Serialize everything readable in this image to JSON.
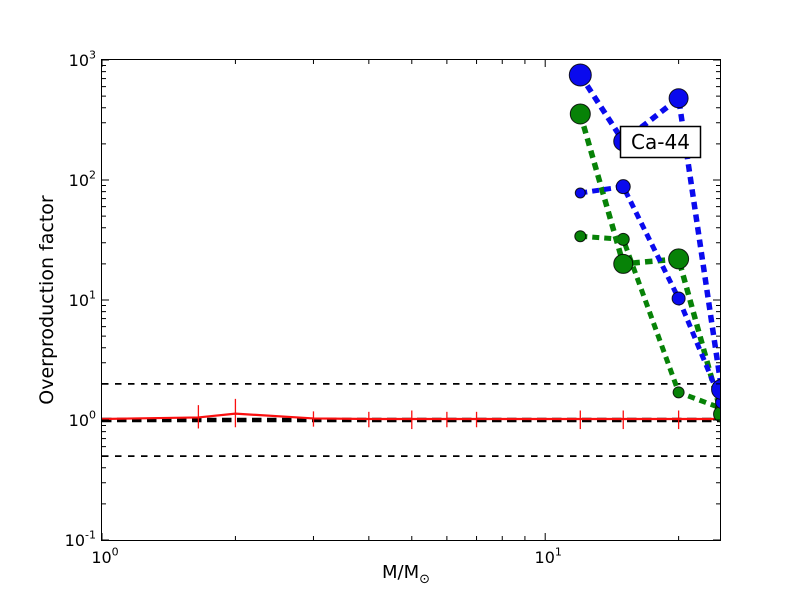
{
  "chart_data": {
    "type": "line",
    "annotation": "Ca-44",
    "xlabel_main": "M/M",
    "xlabel_sub": "⊙",
    "ylabel": "Overproduction factor",
    "xscale": "log",
    "yscale": "log",
    "xlim": [
      1,
      24.8
    ],
    "ylim": [
      0.1,
      1000
    ],
    "background": "#ffffff",
    "axis_color": "#000000",
    "x_ticks": [
      {
        "value": 1,
        "exponent": "0"
      },
      {
        "value": 10,
        "exponent": "1"
      }
    ],
    "y_ticks": [
      {
        "value": 0.1,
        "exponent": "-1"
      },
      {
        "value": 1,
        "exponent": "0"
      },
      {
        "value": 10,
        "exponent": "1"
      },
      {
        "value": 100,
        "exponent": "2"
      },
      {
        "value": 1000,
        "exponent": "3"
      }
    ],
    "x_minor_ticks": [
      2,
      3,
      4,
      5,
      6,
      7,
      8,
      9,
      20
    ],
    "y_minor_mantissas": [
      2,
      3,
      4,
      5,
      6,
      7,
      8,
      9
    ],
    "y_minor_decades": [
      0.1,
      1,
      10,
      100
    ],
    "reference_lines": [
      {
        "value": 2,
        "color": "#000000",
        "width": 1.8,
        "dash": [
          6.5,
          6.5
        ]
      },
      {
        "value": 1,
        "color": "#000000",
        "width": 4.5,
        "dash": [
          9.5,
          5.5
        ]
      },
      {
        "value": 0.5,
        "color": "#000000",
        "width": 1.8,
        "dash": [
          6.5,
          6.5
        ]
      }
    ],
    "red_line": {
      "name": "low-mass-models-line",
      "color": "#fa0f0f",
      "line_width": 2.2,
      "x": [
        1,
        1.65,
        2,
        3,
        4,
        5,
        6,
        7,
        12,
        15,
        20,
        24.8
      ],
      "y": [
        1.02,
        1.05,
        1.13,
        1.03,
        1.02,
        1.02,
        1.02,
        1.02,
        1.02,
        1.02,
        1.02,
        1.02
      ]
    },
    "error_bars": {
      "color": "#fa0f0f",
      "width": 1.3,
      "items": [
        {
          "x": 1.65,
          "lo": 0.85,
          "hi": 1.33
        },
        {
          "x": 2,
          "lo": 0.87,
          "hi": 1.5
        },
        {
          "x": 3,
          "lo": 0.88,
          "hi": 1.18
        },
        {
          "x": 4,
          "lo": 0.87,
          "hi": 1.17
        },
        {
          "x": 5,
          "lo": 0.84,
          "hi": 1.2
        },
        {
          "x": 6,
          "lo": 0.87,
          "hi": 1.17
        },
        {
          "x": 7,
          "lo": 0.87,
          "hi": 1.17
        },
        {
          "x": 12,
          "lo": 0.84,
          "hi": 1.2
        },
        {
          "x": 15,
          "lo": 0.84,
          "hi": 1.2
        },
        {
          "x": 20,
          "lo": 0.84,
          "hi": 1.2
        }
      ]
    },
    "series": [
      {
        "name": "green-small-marker-set",
        "color": "#078207",
        "line_width": 5,
        "dash": [
          7,
          5
        ],
        "x": [
          12,
          15,
          20,
          25
        ],
        "y": [
          34,
          32,
          1.7,
          1.25
        ],
        "marker_radii": [
          5.5,
          6,
          5.5,
          6
        ]
      },
      {
        "name": "green-large-marker-set",
        "color": "#078207",
        "line_width": 5.5,
        "dash": [
          7.5,
          5.2
        ],
        "x": [
          12,
          15,
          20,
          25
        ],
        "y": [
          355,
          20,
          22,
          1.12
        ],
        "marker_radii": [
          10,
          9.5,
          10,
          8
        ]
      },
      {
        "name": "blue-small-marker-set",
        "color": "#0a0aee",
        "line_width": 5,
        "dash": [
          7,
          5
        ],
        "x": [
          12,
          15,
          20,
          25
        ],
        "y": [
          78,
          88,
          10.3,
          1.4
        ],
        "marker_radii": [
          5,
          7,
          6.5,
          6
        ]
      },
      {
        "name": "blue-large-marker-set",
        "color": "#0a0aee",
        "line_width": 5.5,
        "dash": [
          7.5,
          5.2
        ],
        "x": [
          12,
          15,
          20,
          25
        ],
        "y": [
          750,
          210,
          480,
          1.8
        ],
        "marker_radii": [
          11,
          9.5,
          9.5,
          10
        ]
      }
    ]
  }
}
